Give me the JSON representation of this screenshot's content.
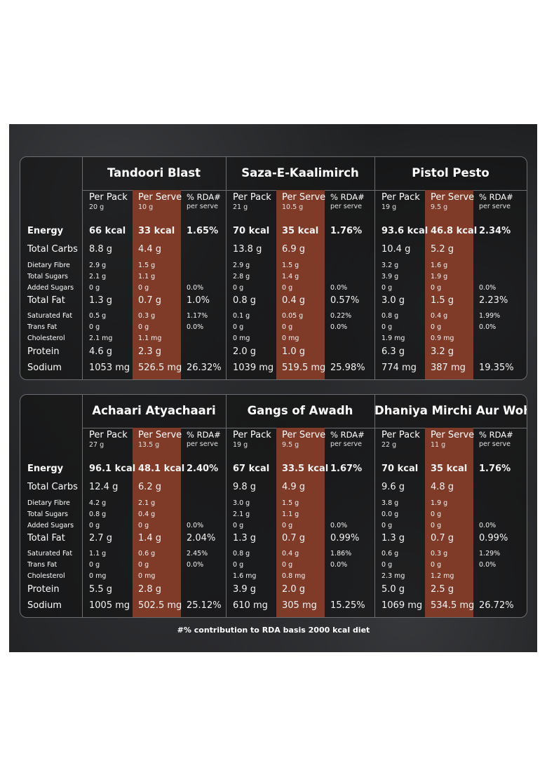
{
  "column_headers": {
    "per_pack": "Per Pack",
    "per_serve": "Per Serve",
    "rda": "% RDA#",
    "rda_sub": "per serve"
  },
  "row_labels": {
    "energy": "Energy",
    "carbs": "Total Carbs",
    "fibre": "Dietary Fibre",
    "sugars": "Total Sugars",
    "added_sugars": "Added Sugars",
    "fat": "Total Fat",
    "sat_fat": "Saturated Fat",
    "trans_fat": "Trans Fat",
    "cholesterol": "Cholesterol",
    "protein": "Protein",
    "sodium": "Sodium"
  },
  "products": [
    {
      "name": "Tandoori Blast",
      "pack_weight": "20 g",
      "serve_weight": "10 g",
      "rows": {
        "energy": [
          "66 kcal",
          "33 kcal",
          "1.65%"
        ],
        "carbs": [
          "8.8 g",
          "4.4 g",
          ""
        ],
        "fibre": [
          "2.9 g",
          "1.5 g",
          ""
        ],
        "sugars": [
          "2.1 g",
          "1.1 g",
          ""
        ],
        "added_sugars": [
          "0 g",
          "0 g",
          "0.0%"
        ],
        "fat": [
          "1.3 g",
          "0.7 g",
          "1.0%"
        ],
        "sat_fat": [
          "0.5 g",
          "0.3 g",
          "1.17%"
        ],
        "trans_fat": [
          "0 g",
          "0 g",
          "0.0%"
        ],
        "cholesterol": [
          "2.1 mg",
          "1.1 mg",
          ""
        ],
        "protein": [
          "4.6 g",
          "2.3 g",
          ""
        ],
        "sodium": [
          "1053 mg",
          "526.5 mg",
          "26.32%"
        ]
      }
    },
    {
      "name": "Saza-E-Kaalimirch",
      "pack_weight": "21 g",
      "serve_weight": "10.5 g",
      "rows": {
        "energy": [
          "70 kcal",
          "35 kcal",
          "1.76%"
        ],
        "carbs": [
          "13.8 g",
          "6.9 g",
          ""
        ],
        "fibre": [
          "2.9 g",
          "1.5 g",
          ""
        ],
        "sugars": [
          "2.8 g",
          "1.4 g",
          ""
        ],
        "added_sugars": [
          "0 g",
          "0 g",
          "0.0%"
        ],
        "fat": [
          "0.8 g",
          "0.4 g",
          "0.57%"
        ],
        "sat_fat": [
          "0.1 g",
          "0.05 g",
          "0.22%"
        ],
        "trans_fat": [
          "0 g",
          "0 g",
          "0.0%"
        ],
        "cholesterol": [
          "0 mg",
          "0 mg",
          ""
        ],
        "protein": [
          "2.0 g",
          "1.0 g",
          ""
        ],
        "sodium": [
          "1039 mg",
          "519.5 mg",
          "25.98%"
        ]
      }
    },
    {
      "name": "Pistol Pesto",
      "pack_weight": "19 g",
      "serve_weight": "9.5 g",
      "rows": {
        "energy": [
          "93.6 kcal",
          "46.8 kcal",
          "2.34%"
        ],
        "carbs": [
          "10.4 g",
          "5.2 g",
          ""
        ],
        "fibre": [
          "3.2 g",
          "1.6 g",
          ""
        ],
        "sugars": [
          "3.9 g",
          "1.9 g",
          ""
        ],
        "added_sugars": [
          "0 g",
          "0 g",
          "0.0%"
        ],
        "fat": [
          "3.0 g",
          "1.5 g",
          "2.23%"
        ],
        "sat_fat": [
          "0.8 g",
          "0.4 g",
          "1.99%"
        ],
        "trans_fat": [
          "0 g",
          "0 g",
          "0.0%"
        ],
        "cholesterol": [
          "1.9 mg",
          "0.9 mg",
          ""
        ],
        "protein": [
          "6.3 g",
          "3.2 g",
          ""
        ],
        "sodium": [
          "774 mg",
          "387 mg",
          "19.35%"
        ]
      }
    },
    {
      "name": "Achaari Atyachaari",
      "pack_weight": "27 g",
      "serve_weight": "13.5 g",
      "rows": {
        "energy": [
          "96.1 kcal",
          "48.1 kcal",
          "2.40%"
        ],
        "carbs": [
          "12.4 g",
          "6.2 g",
          ""
        ],
        "fibre": [
          "4.2 g",
          "2.1 g",
          ""
        ],
        "sugars": [
          "0.8 g",
          "0.4 g",
          ""
        ],
        "added_sugars": [
          "0 g",
          "0 g",
          "0.0%"
        ],
        "fat": [
          "2.7 g",
          "1.4 g",
          "2.04%"
        ],
        "sat_fat": [
          "1.1 g",
          "0.6 g",
          "2.45%"
        ],
        "trans_fat": [
          "0 g",
          "0 g",
          "0.0%"
        ],
        "cholesterol": [
          "0 mg",
          "0 mg",
          ""
        ],
        "protein": [
          "5.5 g",
          "2.8 g",
          ""
        ],
        "sodium": [
          "1005 mg",
          "502.5 mg",
          "25.12%"
        ]
      }
    },
    {
      "name": "Gangs of Awadh",
      "pack_weight": "19 g",
      "serve_weight": "9.5 g",
      "rows": {
        "energy": [
          "67 kcal",
          "33.5 kcal",
          "1.67%"
        ],
        "carbs": [
          "9.8 g",
          "4.9 g",
          ""
        ],
        "fibre": [
          "3.0 g",
          "1.5 g",
          ""
        ],
        "sugars": [
          "2.1 g",
          "1.1 g",
          ""
        ],
        "added_sugars": [
          "0 g",
          "0 g",
          "0.0%"
        ],
        "fat": [
          "1.3 g",
          "0.7 g",
          "0.99%"
        ],
        "sat_fat": [
          "0.8 g",
          "0.4 g",
          "1.86%"
        ],
        "trans_fat": [
          "0 g",
          "0 g",
          "0.0%"
        ],
        "cholesterol": [
          "1.6 mg",
          "0.8 mg",
          ""
        ],
        "protein": [
          "3.9 g",
          "2.0 g",
          ""
        ],
        "sodium": [
          "610 mg",
          "305 mg",
          "15.25%"
        ]
      }
    },
    {
      "name": "Dhaniya Mirchi Aur Woh",
      "pack_weight": "22 g",
      "serve_weight": "11 g",
      "rows": {
        "energy": [
          "70 kcal",
          "35 kcal",
          "1.76%"
        ],
        "carbs": [
          "9.6 g",
          "4.8 g",
          ""
        ],
        "fibre": [
          "3.8 g",
          "1.9 g",
          ""
        ],
        "sugars": [
          "0.0 g",
          "0 g",
          ""
        ],
        "added_sugars": [
          "0 g",
          "0 g",
          "0.0%"
        ],
        "fat": [
          "1.3 g",
          "0.7 g",
          "0.99%"
        ],
        "sat_fat": [
          "0.6 g",
          "0.3 g",
          "1.29%"
        ],
        "trans_fat": [
          "0 g",
          "0 g",
          "0.0%"
        ],
        "cholesterol": [
          "2.3 mg",
          "1.2 mg",
          ""
        ],
        "protein": [
          "5.0 g",
          "2.5 g",
          ""
        ],
        "sodium": [
          "1069 mg",
          "534.5 mg",
          "26.72%"
        ]
      }
    }
  ],
  "footnote": "#% contribution to RDA basis 2000 kcal diet",
  "colors": {
    "serve_column": "#803a28",
    "border": "#6c6d70",
    "background": "#1f2022"
  }
}
